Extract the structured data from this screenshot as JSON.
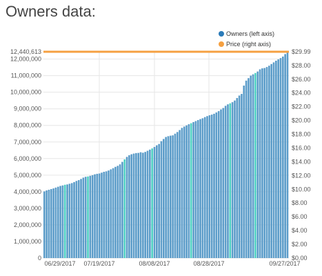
{
  "page": {
    "title": "Owners data:"
  },
  "colors": {
    "owners_bar": "#5b9cc9",
    "owners_bar_highlight": "#4fd1c3",
    "owners_legend": "#2b7bb9",
    "price_line": "#f5a041",
    "grid": "#e6e6e6"
  },
  "chart_data": {
    "type": "bar",
    "title": "Owners data:",
    "legend_position": "top-right",
    "grid": true,
    "x": {
      "start_date": "2017-06-29",
      "end_date": "2017-09-27",
      "tick_labels": [
        "06/29/2017",
        "07/19/2017",
        "08/08/2017",
        "08/28/2017",
        "09/27/2017"
      ]
    },
    "y_left": {
      "label": "",
      "range": [
        0,
        12440613
      ],
      "tick_labels": [
        "12,440,613",
        "12,000,000",
        "11,000,000",
        "10,000,000",
        "9,000,000",
        "8,000,000",
        "7,000,000",
        "6,000,000",
        "5,000,000",
        "4,000,000",
        "3,000,000",
        "2,000,000",
        "1,000,000",
        "0"
      ],
      "tick_values": [
        12440613,
        12000000,
        11000000,
        10000000,
        9000000,
        8000000,
        7000000,
        6000000,
        5000000,
        4000000,
        3000000,
        2000000,
        1000000,
        0
      ]
    },
    "y_right": {
      "label": "",
      "range": [
        0,
        29.99
      ],
      "tick_labels": [
        "$29.99",
        "$28.00",
        "$26.00",
        "$24.00",
        "$22.00",
        "$20.00",
        "$18.00",
        "$16.00",
        "$14.00",
        "$12.00",
        "$10.00",
        "$8.00",
        "$6.00",
        "$4.00",
        "$2.00",
        "$0.00"
      ],
      "tick_values": [
        29.99,
        28,
        26,
        24,
        22,
        20,
        18,
        16,
        14,
        12,
        10,
        8,
        6,
        4,
        2,
        0
      ]
    },
    "series": [
      {
        "name": "Owners (left axis)",
        "axis": "left",
        "type": "bar",
        "highlight_indices": [
          9,
          19,
          35,
          47,
          64,
          81,
          92
        ],
        "values": [
          4020000,
          4080000,
          4120000,
          4160000,
          4200000,
          4250000,
          4300000,
          4350000,
          4380000,
          4420000,
          4440000,
          4480000,
          4520000,
          4580000,
          4650000,
          4700000,
          4770000,
          4850000,
          4900000,
          4920000,
          4960000,
          5000000,
          5050000,
          5080000,
          5100000,
          5150000,
          5200000,
          5230000,
          5280000,
          5350000,
          5420000,
          5500000,
          5560000,
          5650000,
          5800000,
          5950000,
          6100000,
          6200000,
          6260000,
          6300000,
          6330000,
          6340000,
          6380000,
          6350000,
          6400000,
          6470000,
          6540000,
          6610000,
          6700000,
          6800000,
          6880000,
          7050000,
          7180000,
          7300000,
          7350000,
          7380000,
          7400000,
          7500000,
          7600000,
          7720000,
          7850000,
          7930000,
          8000000,
          8070000,
          8130000,
          8200000,
          8260000,
          8320000,
          8380000,
          8430000,
          8500000,
          8560000,
          8610000,
          8650000,
          8700000,
          8780000,
          8860000,
          8960000,
          9050000,
          9180000,
          9270000,
          9330000,
          9400000,
          9500000,
          9650000,
          9800000,
          9900000,
          10400000,
          10700000,
          10850000,
          11000000,
          11080000,
          11160000,
          11250000,
          11380000,
          11440000,
          11460000,
          11520000,
          11600000,
          11700000,
          11800000,
          11900000,
          11980000,
          12060000,
          12150000,
          12300000,
          12440613
        ]
      },
      {
        "name": "Price (right axis)",
        "axis": "right",
        "type": "line",
        "value": 29.99
      }
    ]
  }
}
